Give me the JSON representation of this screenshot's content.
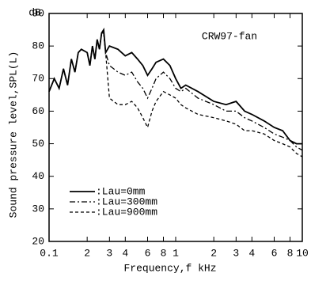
{
  "chart_data": {
    "type": "line",
    "annotation": "CRW97-fan",
    "xlabel": "Frequency,f   kHz",
    "ylabel": "Sound pressure level,SPL(L)",
    "y_unit": "dB",
    "xscale": "log",
    "xlim": [
      0.1,
      10
    ],
    "ylim": [
      20,
      90
    ],
    "xticks": [
      "0.1",
      {
        "value": 0.2,
        "label": "2"
      },
      {
        "value": 0.3,
        "label": "3"
      },
      {
        "value": 0.4,
        "label": "4"
      },
      {
        "value": 0.6,
        "label": "6"
      },
      {
        "value": 0.8,
        "label": "8"
      },
      1,
      2,
      3,
      4,
      6,
      8,
      10
    ],
    "yticks": [
      20,
      30,
      40,
      50,
      60,
      70,
      80,
      90
    ],
    "grid": false,
    "x": [
      0.1,
      0.11,
      0.12,
      0.13,
      0.14,
      0.15,
      0.16,
      0.17,
      0.18,
      0.2,
      0.21,
      0.22,
      0.23,
      0.24,
      0.25,
      0.26,
      0.27,
      0.28,
      0.3,
      0.35,
      0.4,
      0.45,
      0.5,
      0.55,
      0.6,
      0.65,
      0.7,
      0.8,
      0.9,
      1,
      1.1,
      1.2,
      1.5,
      2,
      2.5,
      3,
      3.5,
      4,
      5,
      6,
      7,
      8,
      9,
      10
    ],
    "series": [
      {
        "name": ":Lau=0mm",
        "color": "#000000",
        "dash": "solid",
        "values": [
          66,
          70,
          67,
          73,
          68,
          76,
          72,
          78,
          79,
          78,
          74,
          80,
          76,
          82,
          79,
          84,
          85,
          78,
          80,
          79,
          77,
          78,
          76,
          74,
          71,
          73,
          75,
          76,
          74,
          70,
          67,
          68,
          66,
          63,
          62,
          63,
          60,
          59,
          57,
          55,
          54,
          51,
          50,
          50
        ]
      },
      {
        "name": ":Lau=300mm",
        "color": "#000000",
        "dash": "dashdot",
        "values": [
          66,
          70,
          67,
          73,
          68,
          76,
          72,
          78,
          79,
          78,
          74,
          80,
          76,
          82,
          79,
          84,
          84,
          78,
          74,
          72,
          71,
          72,
          69,
          67,
          64,
          67,
          70,
          72,
          70,
          67,
          66,
          67,
          64,
          62,
          60,
          60,
          58,
          57,
          55,
          53,
          52,
          51,
          49,
          48
        ]
      },
      {
        "name": ":Lau=900mm",
        "color": "#000000",
        "dash": "dashed",
        "values": [
          66,
          70,
          67,
          73,
          68,
          76,
          72,
          78,
          79,
          78,
          74,
          80,
          76,
          82,
          79,
          84,
          84,
          78,
          64,
          62,
          62,
          63,
          61,
          58,
          55,
          60,
          63,
          66,
          65,
          64,
          62,
          61,
          59,
          58,
          57,
          56,
          54,
          54,
          53,
          51,
          50,
          49,
          47,
          46
        ]
      }
    ]
  }
}
